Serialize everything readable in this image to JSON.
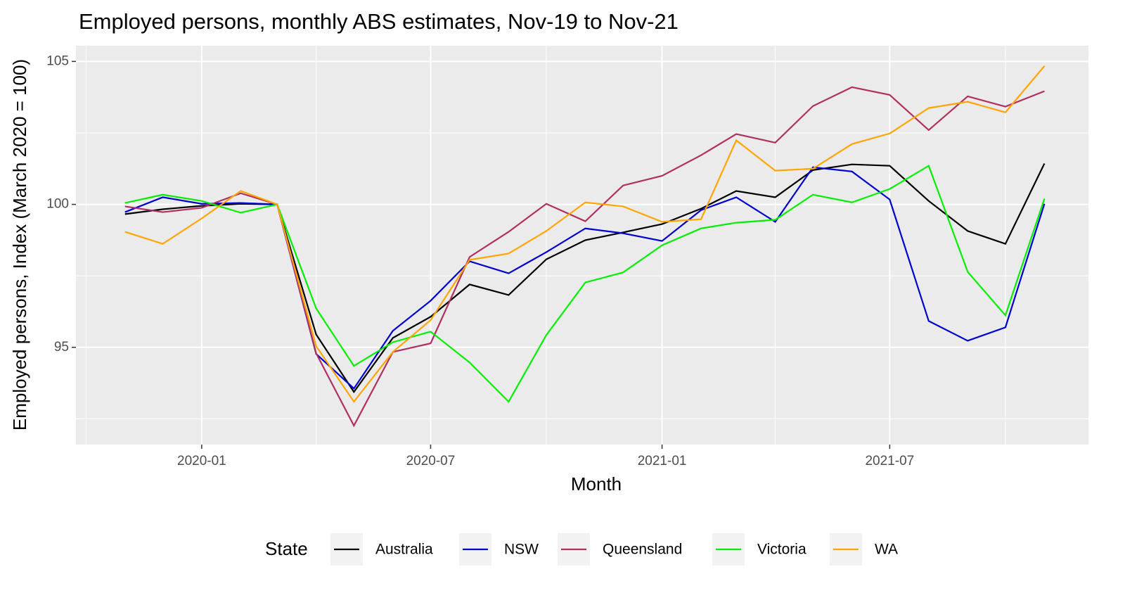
{
  "chart_data": {
    "type": "line",
    "title": "Employed persons, monthly ABS estimates, Nov-19 to Nov-21",
    "x_label": "Month",
    "y_label": "Employed persons, Index (March 2020 = 100)",
    "legend_title": "State",
    "legend": "bottom",
    "grid": true,
    "x": [
      "2019-11",
      "2019-12",
      "2020-01",
      "2020-02",
      "2020-03",
      "2020-04",
      "2020-05",
      "2020-06",
      "2020-07",
      "2020-08",
      "2020-09",
      "2020-10",
      "2020-11",
      "2020-12",
      "2021-01",
      "2021-02",
      "2021-03",
      "2021-04",
      "2021-05",
      "2021-06",
      "2021-07",
      "2021-08",
      "2021-09",
      "2021-10",
      "2021-11"
    ],
    "xlim": [
      "2019-09-23",
      "2021-12-06"
    ],
    "xticks": [
      "2020-01",
      "2020-07",
      "2021-01",
      "2021-07"
    ],
    "xminor": [
      "2019-10",
      "2020-04",
      "2020-10",
      "2021-04",
      "2021-10"
    ],
    "ylim": [
      91.6,
      105.55
    ],
    "yticks": [
      95,
      100,
      105
    ],
    "yminor": [
      92.5,
      97.5,
      102.5
    ],
    "series": [
      {
        "name": "Australia",
        "color": "#000000",
        "values": [
          99.66,
          99.83,
          99.95,
          100.02,
          100,
          95.45,
          93.44,
          95.33,
          96.07,
          97.2,
          96.83,
          98.08,
          98.75,
          99.02,
          99.31,
          99.85,
          100.47,
          100.25,
          101.2,
          101.4,
          101.35,
          100.12,
          99.07,
          98.62,
          101.43
        ]
      },
      {
        "name": "NSW",
        "color": "#0000cd",
        "values": [
          99.73,
          100.25,
          100.02,
          100.05,
          100,
          94.77,
          93.56,
          95.58,
          96.63,
          98.01,
          97.59,
          98.33,
          99.16,
          98.99,
          98.72,
          99.8,
          100.25,
          99.39,
          101.3,
          101.15,
          100.17,
          95.92,
          95.23,
          95.7,
          100.02
        ]
      },
      {
        "name": "Queensland",
        "color": "#b03060",
        "values": [
          99.93,
          99.73,
          99.88,
          100.39,
          100,
          94.79,
          92.26,
          94.84,
          95.14,
          98.16,
          99.04,
          100.02,
          99.41,
          100.66,
          101.0,
          101.72,
          102.46,
          102.16,
          103.44,
          104.1,
          103.83,
          102.6,
          103.78,
          103.42,
          103.96
        ]
      },
      {
        "name": "Victoria",
        "color": "#00ee00",
        "values": [
          100.05,
          100.34,
          100.12,
          99.71,
          100,
          96.36,
          94.35,
          95.18,
          95.55,
          94.47,
          93.1,
          95.43,
          97.27,
          97.62,
          98.57,
          99.16,
          99.36,
          99.46,
          100.34,
          100.07,
          100.54,
          101.35,
          97.64,
          96.12,
          100.2
        ]
      },
      {
        "name": "WA",
        "color": "#ffa500",
        "values": [
          99.04,
          98.62,
          99.51,
          100.47,
          100,
          95.04,
          93.1,
          94.84,
          95.95,
          98.06,
          98.28,
          99.07,
          100.07,
          99.93,
          99.39,
          99.48,
          102.24,
          101.18,
          101.25,
          102.11,
          102.48,
          103.37,
          103.59,
          103.22,
          104.84
        ]
      }
    ]
  }
}
